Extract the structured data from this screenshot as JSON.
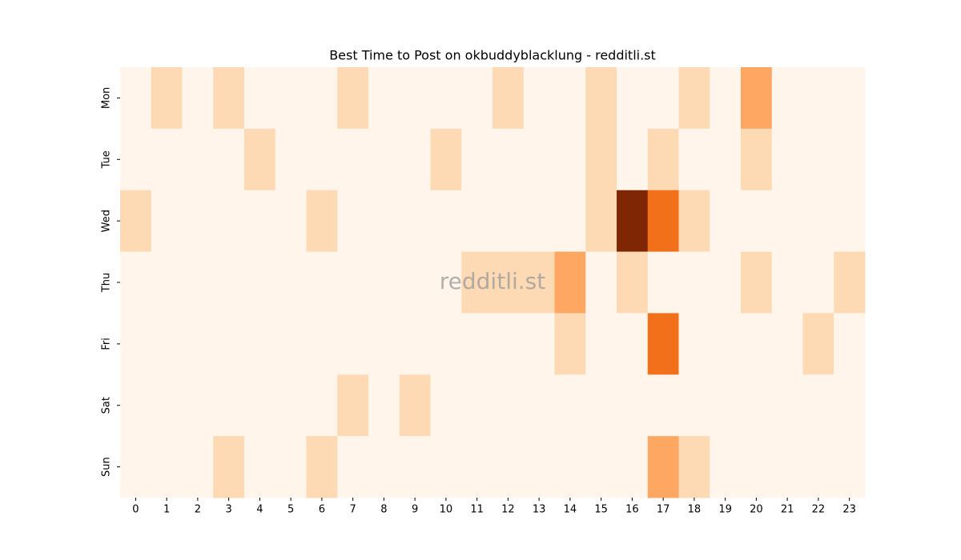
{
  "chart_data": {
    "type": "heatmap",
    "title": "Best Time to Post on okbuddyblacklung - redditli.st",
    "watermark": "redditli.st",
    "x": [
      "0",
      "1",
      "2",
      "3",
      "4",
      "5",
      "6",
      "7",
      "8",
      "9",
      "10",
      "11",
      "12",
      "13",
      "14",
      "15",
      "16",
      "17",
      "18",
      "19",
      "20",
      "21",
      "22",
      "23"
    ],
    "y": [
      "Mon",
      "Tue",
      "Wed",
      "Thu",
      "Fri",
      "Sat",
      "Sun"
    ],
    "values": [
      [
        0,
        1,
        0,
        1,
        0,
        0,
        0,
        1,
        0,
        0,
        0,
        0,
        1,
        0,
        0,
        1,
        0,
        0,
        1,
        0,
        2,
        0,
        0,
        0
      ],
      [
        0,
        0,
        0,
        0,
        1,
        0,
        0,
        0,
        0,
        0,
        1,
        0,
        0,
        0,
        0,
        1,
        0,
        1,
        0,
        0,
        1,
        0,
        0,
        0
      ],
      [
        1,
        0,
        0,
        0,
        0,
        0,
        1,
        0,
        0,
        0,
        0,
        0,
        0,
        0,
        0,
        1,
        5,
        3,
        1,
        0,
        0,
        0,
        0,
        0
      ],
      [
        0,
        0,
        0,
        0,
        0,
        0,
        0,
        0,
        0,
        0,
        0,
        1,
        1,
        1,
        2,
        0,
        1,
        0,
        0,
        0,
        1,
        0,
        0,
        1
      ],
      [
        0,
        0,
        0,
        0,
        0,
        0,
        0,
        0,
        0,
        0,
        0,
        0,
        0,
        0,
        1,
        0,
        0,
        3,
        0,
        0,
        0,
        0,
        1,
        0
      ],
      [
        0,
        0,
        0,
        0,
        0,
        0,
        0,
        1,
        0,
        1,
        0,
        0,
        0,
        0,
        0,
        0,
        0,
        0,
        0,
        0,
        0,
        0,
        0,
        0
      ],
      [
        0,
        0,
        0,
        1,
        0,
        0,
        1,
        0,
        0,
        0,
        0,
        0,
        0,
        0,
        0,
        0,
        0,
        2,
        1,
        0,
        0,
        0,
        0,
        0
      ]
    ],
    "color_scale": {
      "min": 0,
      "max": 5,
      "colors": [
        "#fff5eb",
        "#fee6ce",
        "#fdd0a2",
        "#fdae6b",
        "#fd8d3c",
        "#f16913",
        "#d94801",
        "#a63603",
        "#7f2704"
      ]
    }
  }
}
